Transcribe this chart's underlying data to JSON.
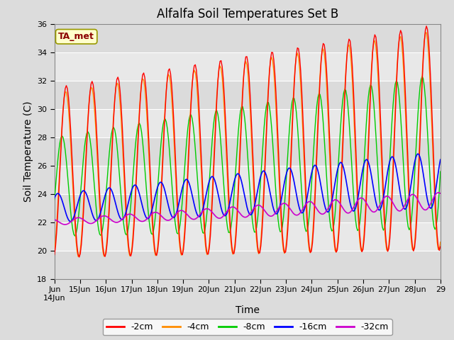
{
  "title": "Alfalfa Soil Temperatures Set B",
  "xlabel": "Time",
  "ylabel": "Soil Temperature (C)",
  "ylim": [
    18,
    36
  ],
  "annotation": "TA_met",
  "annotation_color": "#8B0000",
  "annotation_bg": "#FFFFCC",
  "legend_entries": [
    "-2cm",
    "-4cm",
    "-8cm",
    "-16cm",
    "-32cm"
  ],
  "line_colors": [
    "#FF0000",
    "#FF8C00",
    "#00CC00",
    "#0000FF",
    "#CC00CC"
  ],
  "title_fontsize": 12,
  "label_fontsize": 10,
  "tick_fontsize": 8
}
